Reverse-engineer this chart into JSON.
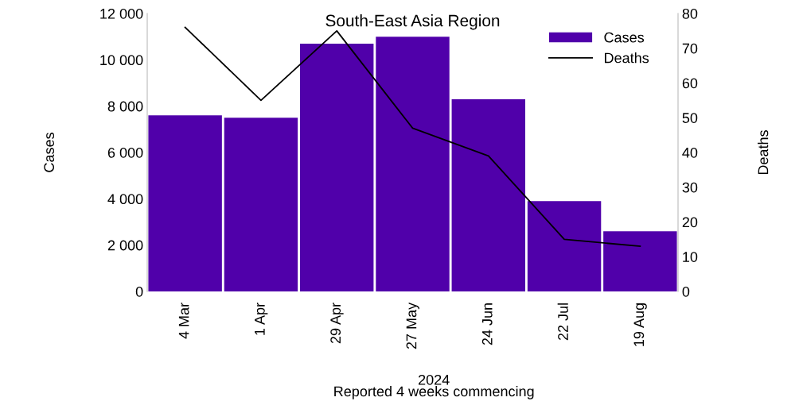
{
  "chart_data": {
    "type": "bar",
    "title": "South-East Asia Region",
    "xlabel": "Reported 4 weeks commencing",
    "ylabel": "Cases",
    "y2label": "Deaths",
    "categories": [
      "4 Mar",
      "1 Apr",
      "29 Apr",
      "27 May",
      "24 Jun",
      "22 Jul",
      "19 Aug"
    ],
    "series": [
      {
        "name": "Cases",
        "color": "#5000aa",
        "values": [
          7600,
          7500,
          10700,
          11000,
          8300,
          3900,
          2600
        ]
      },
      {
        "name": "Deaths",
        "type": "line",
        "axis": "y2",
        "color": "#000000",
        "values": [
          76,
          55,
          75,
          47,
          39,
          15,
          13
        ]
      }
    ],
    "ylim": [
      0,
      12000
    ],
    "yticks": [
      0,
      {
        "value": 2000,
        "label": "2 000"
      },
      {
        "value": 4000,
        "label": "4 000"
      },
      {
        "value": 6000,
        "label": "6 000"
      },
      {
        "value": 8000,
        "label": "8 000"
      },
      {
        "value": 10000,
        "label": "10 000"
      },
      {
        "value": 12000,
        "label": "12 000"
      }
    ],
    "y2lim": [
      0,
      80
    ],
    "y2ticks": [
      0,
      10,
      20,
      30,
      40,
      50,
      60,
      70,
      80
    ],
    "annotations": [
      "2024"
    ],
    "legend": "top right",
    "grid": false
  }
}
